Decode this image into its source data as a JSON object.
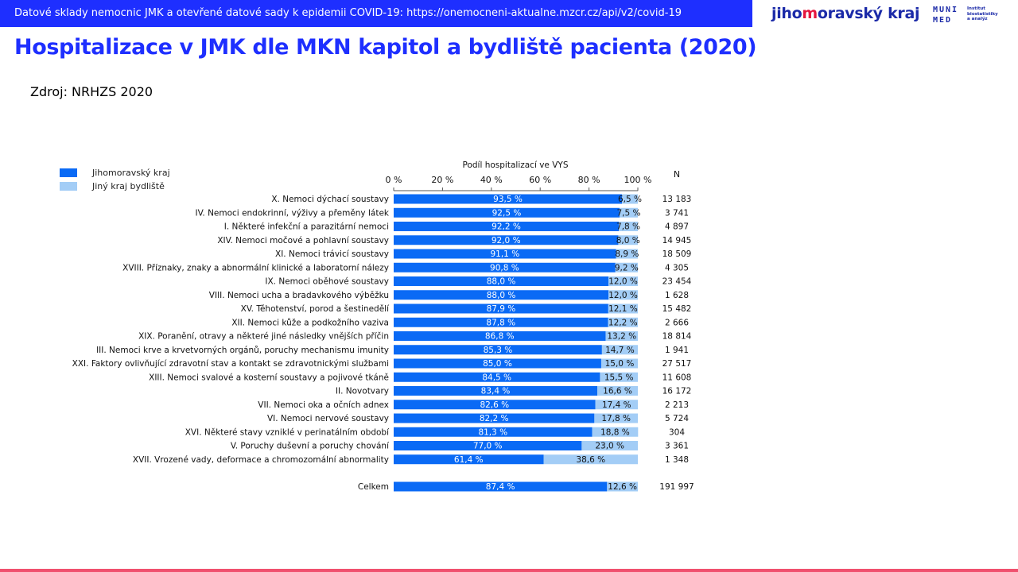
{
  "header": {
    "banner_text": "Datové sklady nemocnic JMK a otevřené datové sady k epidemii COVID-19: https://onemocneni-aktualne.mzcr.cz/api/v2/covid-19",
    "brand_a": "jiho",
    "brand_b": "m",
    "brand_c": "oravský kraj",
    "muni_line1": "MUNI",
    "muni_line2": "MED",
    "muni_sub": "Institut biostatistiky a analýz"
  },
  "page_title": "Hospitalizace v JMK dle MKN kapitol a bydliště pacienta (2020)",
  "source": "Zdroj: NRHZS 2020",
  "colors": {
    "jmk": "#0a6af5",
    "other": "#a3cdf6",
    "accent": "#1e2fff"
  },
  "chart_data": {
    "type": "bar",
    "stacked": true,
    "orientation": "horizontal",
    "xlabel": "Podíl hospitalizací ve VYS",
    "x_ticks": [
      "0 %",
      "20 %",
      "40 %",
      "60 %",
      "80 %",
      "100 %"
    ],
    "xlim": [
      0,
      100
    ],
    "n_header": "N",
    "legend": [
      "Jihomoravský kraj",
      "Jiný kraj bydliště"
    ],
    "legend_position": "top-left",
    "categories": [
      "X. Nemoci dýchací soustavy",
      "IV. Nemoci endokrinní, výživy a přeměny látek",
      "I. Některé infekční a parazitární nemoci",
      "XIV. Nemoci močové a pohlavní soustavy",
      "XI. Nemoci trávicí soustavy",
      "XVIII. Příznaky, znaky a abnormální klinické a laboratorní nálezy",
      "IX. Nemoci oběhové soustavy",
      "VIII. Nemoci ucha a bradavkového výběžku",
      "XV. Těhotenství, porod a šestinedělí",
      "XII. Nemoci kůže a podkožního vaziva",
      "XIX. Poranění, otravy a některé jiné následky vnějších příčin",
      "III. Nemoci krve a krvetvorných orgánů, poruchy mechanismu imunity",
      "XXI. Faktory ovlivňující zdravotní stav a kontakt se zdravotnickými službami",
      "XIII. Nemoci svalové a kosterní soustavy a pojivové tkáně",
      "II. Novotvary",
      "VII. Nemoci oka a očních adnex",
      "VI. Nemoci nervové soustavy",
      "XVI. Některé stavy vzniklé v perinatálním období",
      "V. Poruchy duševní a poruchy chování",
      "XVII. Vrozené vady, deformace a chromozomální abnormality"
    ],
    "series": [
      {
        "name": "Jihomoravský kraj",
        "values": [
          93.5,
          92.5,
          92.2,
          92.0,
          91.1,
          90.8,
          88.0,
          88.0,
          87.9,
          87.8,
          86.8,
          85.3,
          85.0,
          84.5,
          83.4,
          82.6,
          82.2,
          81.3,
          77.0,
          61.4
        ],
        "labels": [
          "93,5 %",
          "92,5 %",
          "92,2 %",
          "92,0 %",
          "91,1 %",
          "90,8 %",
          "88,0 %",
          "88,0 %",
          "87,9 %",
          "87,8 %",
          "86,8 %",
          "85,3 %",
          "85,0 %",
          "84,5 %",
          "83,4 %",
          "82,6 %",
          "82,2 %",
          "81,3 %",
          "77,0 %",
          "61,4 %"
        ]
      },
      {
        "name": "Jiný kraj bydliště",
        "values": [
          6.5,
          7.5,
          7.8,
          8.0,
          8.9,
          9.2,
          12.0,
          12.0,
          12.1,
          12.2,
          13.2,
          14.7,
          15.0,
          15.5,
          16.6,
          17.4,
          17.8,
          18.8,
          23.0,
          38.6
        ],
        "labels": [
          "6,5 %",
          "7,5 %",
          "7,8 %",
          "8,0 %",
          "8,9 %",
          "9,2 %",
          "12,0 %",
          "12,0 %",
          "12,1 %",
          "12,2 %",
          "13,2 %",
          "14,7 %",
          "15,0 %",
          "15,5 %",
          "16,6 %",
          "17,4 %",
          "17,8 %",
          "18,8 %",
          "23,0 %",
          "38,6 %"
        ]
      }
    ],
    "n_values": [
      "13 183",
      "3 741",
      "4 897",
      "14 945",
      "18 509",
      "4 305",
      "23 454",
      "1 628",
      "15 482",
      "2 666",
      "18 814",
      "1 941",
      "27 517",
      "11 608",
      "16 172",
      "2 213",
      "5 724",
      "304",
      "3 361",
      "1 348"
    ],
    "total": {
      "label": "Celkem",
      "values": [
        87.4,
        12.6
      ],
      "labels": [
        "87,4 %",
        "12,6 %"
      ],
      "n": "191 997"
    }
  }
}
